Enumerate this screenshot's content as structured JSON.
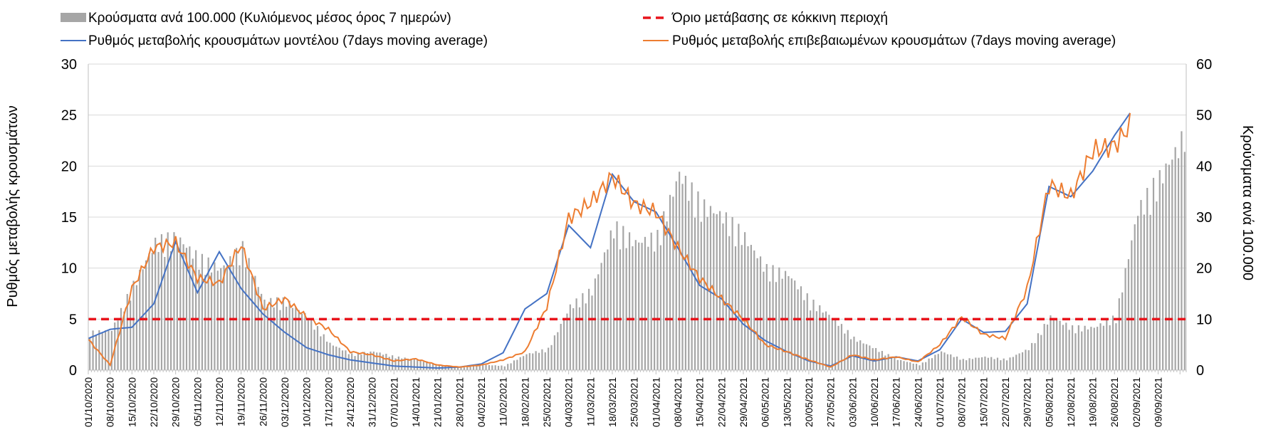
{
  "chart_data": {
    "type": "bar",
    "title": "",
    "ylabel_left": "Ρυθμός μεταβολής κρουσμάτων",
    "ylabel_right": "Κρούσματα ανά 100.000",
    "ylim_left": [
      0,
      30
    ],
    "ylim_right": [
      0,
      60
    ],
    "yticks_left": [
      "0",
      "5",
      "10",
      "15",
      "20",
      "25",
      "30"
    ],
    "yticks_right": [
      "0",
      "10",
      "20",
      "30",
      "40",
      "50",
      "60"
    ],
    "legend": {
      "bars": "Κρούσματα ανά 100.000 (Κυλιόμενος μέσος όρος 7 ημερών)",
      "threshold": "Όριο μετάβασης σε κόκκινη περιοχή",
      "model": "Ρυθμός μεταβολής κρουσμάτων μοντέλου (7days moving average)",
      "confirmed": "Ρυθμός μεταβολής επιβεβαιωμένων κρουσμάτων (7days moving average)"
    },
    "colors": {
      "bars": "#a6a6a6",
      "threshold": "#e8141b",
      "model": "#4472c4",
      "confirmed": "#ed7d31",
      "grid": "#d9d9d9"
    },
    "date_labels": [
      "01/10/2020",
      "08/10/2020",
      "15/10/2020",
      "22/10/2020",
      "29/10/2020",
      "05/11/2020",
      "12/11/2020",
      "19/11/2020",
      "26/11/2020",
      "03/12/2020",
      "10/12/2020",
      "17/12/2020",
      "24/12/2020",
      "31/12/2020",
      "07/01/2021",
      "14/01/2021",
      "21/01/2021",
      "28/01/2021",
      "04/02/2021",
      "11/02/2021",
      "18/02/2021",
      "25/02/2021",
      "04/03/2021",
      "11/03/2021",
      "18/03/2021",
      "25/03/2021",
      "01/04/2021",
      "08/04/2021",
      "15/04/2021",
      "22/04/2021",
      "29/04/2021",
      "06/05/2021",
      "13/05/2021",
      "20/05/2021",
      "27/05/2021",
      "03/06/2021",
      "10/06/2021",
      "17/06/2021",
      "24/06/2021",
      "01/07/2021",
      "08/07/2021",
      "15/07/2021",
      "22/07/2021",
      "29/07/2021",
      "05/08/2021",
      "12/08/2021",
      "19/08/2021",
      "26/08/2021",
      "02/09/2021",
      "09/09/2021"
    ],
    "total_days": 352,
    "threshold_rate": 5,
    "cases_per_100k_keypoints": [
      [
        0,
        7
      ],
      [
        7,
        7.5
      ],
      [
        14,
        16
      ],
      [
        21,
        24
      ],
      [
        28,
        25
      ],
      [
        35,
        21
      ],
      [
        42,
        19
      ],
      [
        49,
        23
      ],
      [
        56,
        13
      ],
      [
        63,
        13
      ],
      [
        70,
        10
      ],
      [
        77,
        5
      ],
      [
        84,
        3
      ],
      [
        91,
        3.5
      ],
      [
        98,
        2.5
      ],
      [
        105,
        2
      ],
      [
        112,
        1
      ],
      [
        119,
        0.5
      ],
      [
        126,
        1
      ],
      [
        133,
        0.8
      ],
      [
        140,
        3
      ],
      [
        147,
        4
      ],
      [
        154,
        12
      ],
      [
        161,
        15
      ],
      [
        168,
        27
      ],
      [
        175,
        24
      ],
      [
        182,
        25
      ],
      [
        189,
        37
      ],
      [
        196,
        31
      ],
      [
        203,
        29
      ],
      [
        210,
        25
      ],
      [
        217,
        19
      ],
      [
        224,
        18
      ],
      [
        231,
        13
      ],
      [
        238,
        10
      ],
      [
        245,
        6
      ],
      [
        252,
        4
      ],
      [
        259,
        2
      ],
      [
        266,
        1
      ],
      [
        273,
        3.5
      ],
      [
        280,
        2
      ],
      [
        287,
        2.5
      ],
      [
        294,
        2
      ],
      [
        301,
        4
      ],
      [
        308,
        10
      ],
      [
        315,
        8
      ],
      [
        322,
        8
      ],
      [
        329,
        10
      ],
      [
        336,
        30
      ],
      [
        343,
        36
      ],
      [
        350,
        43
      ],
      [
        352,
        48
      ]
    ],
    "model_rate_keypoints": [
      [
        0,
        3.1
      ],
      [
        7,
        4.0
      ],
      [
        14,
        4.2
      ],
      [
        21,
        6.5
      ],
      [
        28,
        12.6
      ],
      [
        35,
        7.6
      ],
      [
        42,
        11.6
      ],
      [
        49,
        8.0
      ],
      [
        56,
        5.5
      ],
      [
        63,
        3.7
      ],
      [
        70,
        2.2
      ],
      [
        77,
        1.5
      ],
      [
        84,
        1.0
      ],
      [
        91,
        0.7
      ],
      [
        98,
        0.4
      ],
      [
        105,
        0.3
      ],
      [
        112,
        0.2
      ],
      [
        119,
        0.3
      ],
      [
        126,
        0.6
      ],
      [
        133,
        1.7
      ],
      [
        140,
        6.0
      ],
      [
        147,
        7.5
      ],
      [
        154,
        14.2
      ],
      [
        161,
        12.0
      ],
      [
        168,
        19.2
      ],
      [
        175,
        16.5
      ],
      [
        182,
        15.5
      ],
      [
        189,
        12.0
      ],
      [
        196,
        8.3
      ],
      [
        203,
        7.0
      ],
      [
        210,
        4.5
      ],
      [
        217,
        2.9
      ],
      [
        224,
        1.8
      ],
      [
        231,
        0.9
      ],
      [
        238,
        0.4
      ],
      [
        245,
        1.4
      ],
      [
        252,
        0.9
      ],
      [
        259,
        1.3
      ],
      [
        266,
        0.9
      ],
      [
        273,
        2.0
      ],
      [
        280,
        5.0
      ],
      [
        287,
        3.7
      ],
      [
        294,
        3.8
      ],
      [
        301,
        6.5
      ],
      [
        308,
        18.0
      ],
      [
        315,
        17.0
      ],
      [
        322,
        19.5
      ],
      [
        329,
        23.0
      ],
      [
        334,
        25.2
      ]
    ],
    "confirmed_rate_keypoints": [
      [
        0,
        3.0
      ],
      [
        7,
        0.5
      ],
      [
        14,
        8.0
      ],
      [
        21,
        12.0
      ],
      [
        28,
        12.5
      ],
      [
        35,
        9.0
      ],
      [
        42,
        8.5
      ],
      [
        49,
        12.3
      ],
      [
        56,
        6.0
      ],
      [
        63,
        7.0
      ],
      [
        70,
        5.2
      ],
      [
        77,
        4.0
      ],
      [
        84,
        1.8
      ],
      [
        91,
        1.5
      ],
      [
        98,
        0.9
      ],
      [
        105,
        1.1
      ],
      [
        112,
        0.5
      ],
      [
        119,
        0.3
      ],
      [
        126,
        0.5
      ],
      [
        133,
        1.0
      ],
      [
        140,
        1.8
      ],
      [
        147,
        6.2
      ],
      [
        154,
        14.9
      ],
      [
        161,
        16.4
      ],
      [
        168,
        19.0
      ],
      [
        175,
        16.3
      ],
      [
        182,
        15.5
      ],
      [
        189,
        12.0
      ],
      [
        196,
        9.0
      ],
      [
        203,
        7.0
      ],
      [
        210,
        5.0
      ],
      [
        217,
        2.5
      ],
      [
        224,
        1.8
      ],
      [
        231,
        1.0
      ],
      [
        238,
        0.3
      ],
      [
        245,
        1.5
      ],
      [
        252,
        1.0
      ],
      [
        259,
        1.3
      ],
      [
        266,
        0.8
      ],
      [
        273,
        2.5
      ],
      [
        280,
        5.2
      ],
      [
        287,
        3.5
      ],
      [
        294,
        3.1
      ],
      [
        301,
        8.0
      ],
      [
        308,
        18.2
      ],
      [
        315,
        17.0
      ],
      [
        322,
        21.5
      ],
      [
        329,
        22.0
      ],
      [
        334,
        24.0
      ]
    ]
  }
}
